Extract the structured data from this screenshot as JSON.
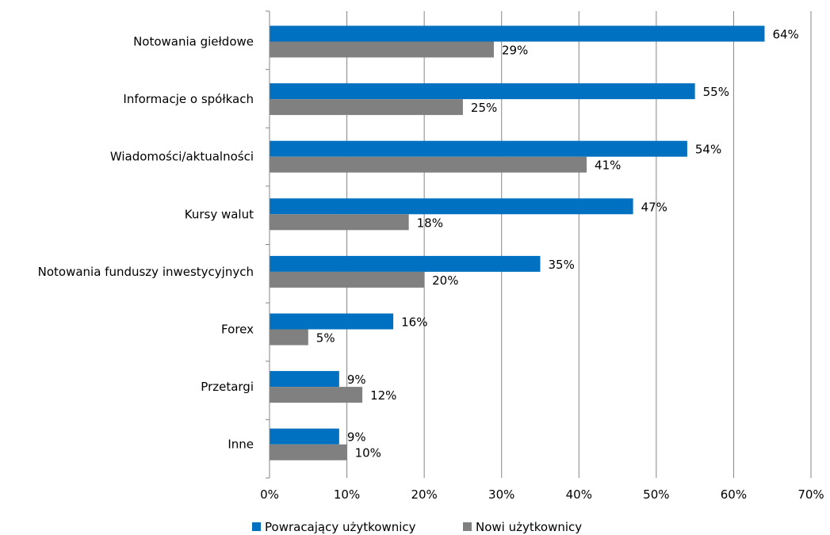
{
  "chart_data": {
    "type": "bar",
    "orientation": "horizontal",
    "categories": [
      "Notowania giełdowe",
      "Informacje o spółkach",
      "Wiadomości/aktualności",
      "Kursy walut",
      "Notowania funduszy inwestycyjnych",
      "Forex",
      "Przetargi",
      "Inne"
    ],
    "series": [
      {
        "name": "Powracający użytkownicy",
        "color": "#0070C0",
        "values": [
          64,
          55,
          54,
          47,
          35,
          16,
          9,
          9
        ]
      },
      {
        "name": "Nowi użytkownicy",
        "color": "#808080",
        "values": [
          29,
          25,
          41,
          18,
          20,
          5,
          12,
          10
        ]
      }
    ],
    "xlim": [
      0,
      70
    ],
    "xticks": [
      0,
      10,
      20,
      30,
      40,
      50,
      60,
      70
    ],
    "tick_suffix": "%",
    "value_suffix": "%",
    "grid": "vertical",
    "legend": "bottom"
  }
}
